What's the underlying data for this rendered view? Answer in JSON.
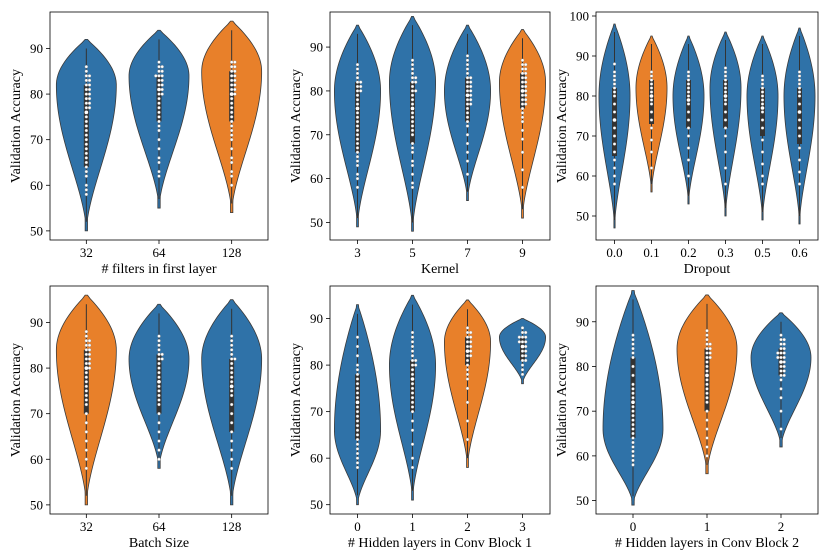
{
  "colors": {
    "blue": "#2f72a8",
    "orange": "#e8802a"
  },
  "chart_data": [
    {
      "type": "violin",
      "title": "",
      "xlabel": "# filters in first layer",
      "ylabel": "Validation Accuracy",
      "ylim": [
        48,
        98
      ],
      "yticks": [
        50,
        60,
        70,
        80,
        90
      ],
      "categories": [
        "32",
        "64",
        "128"
      ],
      "highlight": [
        "128"
      ],
      "series": [
        {
          "name": "32",
          "min": 50,
          "max": 92,
          "mode": 82,
          "q1": 64,
          "median": 76,
          "q3": 82,
          "points": [
            58,
            59,
            60,
            62,
            63,
            64,
            65,
            66,
            67,
            68,
            69,
            70,
            71,
            72,
            73,
            74,
            75,
            76,
            77,
            77,
            78,
            78,
            79,
            79,
            80,
            80,
            81,
            81,
            82,
            82,
            83,
            83,
            84,
            84,
            85,
            86
          ]
        },
        {
          "name": "64",
          "min": 55,
          "max": 94,
          "mode": 84,
          "q1": 74,
          "median": 81,
          "q3": 84,
          "points": [
            62,
            63,
            65,
            66,
            68,
            70,
            72,
            73,
            74,
            75,
            76,
            77,
            78,
            79,
            80,
            80,
            81,
            81,
            82,
            82,
            83,
            83,
            84,
            84,
            84,
            85,
            85,
            86,
            86,
            87
          ]
        },
        {
          "name": "128",
          "min": 54,
          "max": 96,
          "mode": 85,
          "q1": 74,
          "median": 80,
          "q3": 85,
          "points": [
            60,
            62,
            63,
            65,
            66,
            68,
            70,
            71,
            72,
            73,
            74,
            75,
            76,
            77,
            78,
            79,
            80,
            80,
            81,
            81,
            82,
            82,
            83,
            83,
            84,
            84,
            85,
            85,
            86,
            86,
            87,
            87
          ]
        }
      ]
    },
    {
      "type": "violin",
      "title": "",
      "xlabel": "Kernel",
      "ylabel": "Validation Accuracy",
      "ylim": [
        46,
        98
      ],
      "yticks": [
        50,
        60,
        70,
        80,
        90
      ],
      "categories": [
        "3",
        "5",
        "7",
        "9"
      ],
      "highlight": [
        "9"
      ],
      "series": [
        {
          "name": "3",
          "min": 49,
          "max": 95,
          "mode": 80,
          "q1": 66,
          "median": 76,
          "q3": 82,
          "points": [
            58,
            60,
            61,
            63,
            64,
            65,
            66,
            67,
            68,
            69,
            70,
            71,
            72,
            73,
            74,
            75,
            76,
            77,
            78,
            79,
            80,
            80,
            81,
            81,
            82,
            82,
            83,
            84,
            85,
            86
          ]
        },
        {
          "name": "5",
          "min": 48,
          "max": 97,
          "mode": 82,
          "q1": 68,
          "median": 76,
          "q3": 82,
          "points": [
            58,
            59,
            61,
            63,
            64,
            66,
            67,
            68,
            70,
            71,
            72,
            73,
            74,
            75,
            76,
            77,
            78,
            79,
            80,
            80,
            81,
            82,
            82,
            83,
            83,
            84,
            85,
            86,
            87
          ]
        },
        {
          "name": "7",
          "min": 55,
          "max": 95,
          "mode": 80,
          "q1": 73,
          "median": 79,
          "q3": 83,
          "points": [
            61,
            64,
            66,
            68,
            70,
            72,
            73,
            74,
            75,
            76,
            77,
            77,
            78,
            78,
            79,
            79,
            80,
            80,
            81,
            81,
            82,
            82,
            83,
            83,
            84,
            85,
            86,
            87,
            88
          ]
        },
        {
          "name": "9",
          "min": 51,
          "max": 94,
          "mode": 82,
          "q1": 76,
          "median": 80,
          "q3": 84,
          "points": [
            58,
            62,
            66,
            69,
            71,
            73,
            74,
            75,
            76,
            77,
            77,
            78,
            78,
            79,
            79,
            80,
            80,
            81,
            81,
            82,
            82,
            83,
            83,
            84,
            84,
            85,
            85,
            86,
            86,
            87
          ]
        }
      ]
    },
    {
      "type": "violin",
      "title": "",
      "xlabel": "Dropout",
      "ylabel": "Validation Accuracy",
      "ylim": [
        44,
        101
      ],
      "yticks": [
        50,
        60,
        70,
        80,
        90,
        100
      ],
      "categories": [
        "0.0",
        "0.1",
        "0.2",
        "0.3",
        "0.5",
        "0.6"
      ],
      "highlight": [
        "0.1"
      ],
      "series": [
        {
          "name": "0.0",
          "min": 47,
          "max": 98,
          "mode": 80,
          "q1": 65,
          "median": 74,
          "q3": 82,
          "points": [
            58,
            60,
            62,
            64,
            66,
            68,
            70,
            72,
            74,
            76,
            78,
            80,
            81,
            82,
            83,
            84,
            85,
            86,
            88
          ]
        },
        {
          "name": "0.1",
          "min": 56,
          "max": 95,
          "mode": 82,
          "q1": 73,
          "median": 80,
          "q3": 84,
          "points": [
            62,
            66,
            69,
            72,
            74,
            76,
            78,
            79,
            80,
            81,
            82,
            83,
            84,
            85,
            86
          ]
        },
        {
          "name": "0.2",
          "min": 53,
          "max": 95,
          "mode": 80,
          "q1": 72,
          "median": 79,
          "q3": 84,
          "points": [
            60,
            64,
            67,
            70,
            72,
            74,
            76,
            78,
            79,
            80,
            81,
            82,
            83,
            84,
            85,
            86
          ]
        },
        {
          "name": "0.3",
          "min": 50,
          "max": 96,
          "mode": 82,
          "q1": 72,
          "median": 80,
          "q3": 84,
          "points": [
            58,
            62,
            66,
            70,
            72,
            74,
            76,
            78,
            79,
            80,
            81,
            82,
            83,
            84,
            85,
            86,
            87
          ]
        },
        {
          "name": "0.5",
          "min": 49,
          "max": 95,
          "mode": 80,
          "q1": 70,
          "median": 77,
          "q3": 82,
          "points": [
            58,
            60,
            63,
            66,
            69,
            72,
            74,
            76,
            78,
            79,
            80,
            81,
            82,
            83,
            84,
            85
          ]
        },
        {
          "name": "0.6",
          "min": 48,
          "max": 97,
          "mode": 80,
          "q1": 68,
          "median": 76,
          "q3": 82,
          "points": [
            58,
            61,
            64,
            67,
            70,
            72,
            74,
            76,
            78,
            80,
            81,
            82,
            83,
            84,
            85,
            86
          ]
        }
      ]
    },
    {
      "type": "violin",
      "title": "",
      "xlabel": "Batch Size",
      "ylabel": "Validation Accuracy",
      "ylim": [
        48,
        98
      ],
      "yticks": [
        50,
        60,
        70,
        80,
        90
      ],
      "categories": [
        "32",
        "64",
        "128"
      ],
      "highlight": [
        "32"
      ],
      "series": [
        {
          "name": "32",
          "min": 50,
          "max": 96,
          "mode": 84,
          "q1": 70,
          "median": 80,
          "q3": 84,
          "points": [
            58,
            60,
            62,
            64,
            66,
            68,
            70,
            72,
            73,
            74,
            75,
            76,
            77,
            78,
            79,
            80,
            80,
            81,
            81,
            82,
            82,
            83,
            83,
            84,
            84,
            85,
            85,
            86,
            86,
            87,
            88
          ]
        },
        {
          "name": "64",
          "min": 58,
          "max": 94,
          "mode": 82,
          "q1": 70,
          "median": 77,
          "q3": 83,
          "points": [
            60,
            62,
            64,
            66,
            68,
            70,
            72,
            73,
            74,
            75,
            76,
            77,
            78,
            79,
            80,
            81,
            82,
            82,
            83,
            83,
            84,
            85,
            86,
            87
          ]
        },
        {
          "name": "128",
          "min": 50,
          "max": 95,
          "mode": 82,
          "q1": 66,
          "median": 76,
          "q3": 82,
          "points": [
            58,
            60,
            62,
            64,
            66,
            68,
            70,
            72,
            74,
            75,
            76,
            77,
            78,
            79,
            80,
            81,
            82,
            82,
            83,
            84,
            85,
            86,
            87
          ]
        }
      ]
    },
    {
      "type": "violin",
      "title": "",
      "xlabel": "# Hidden layers in Conv Block 1",
      "ylabel": "Validation Accuracy",
      "ylim": [
        48,
        97
      ],
      "yticks": [
        50,
        60,
        70,
        80,
        90
      ],
      "categories": [
        "0",
        "1",
        "2",
        "3"
      ],
      "highlight": [
        "2"
      ],
      "series": [
        {
          "name": "0",
          "min": 50,
          "max": 93,
          "mode": 66,
          "q1": 64,
          "median": 72,
          "q3": 78,
          "points": [
            58,
            59,
            60,
            61,
            62,
            63,
            64,
            65,
            66,
            67,
            68,
            69,
            70,
            71,
            72,
            73,
            74,
            75,
            76,
            77,
            78,
            79,
            80,
            82,
            84,
            86
          ]
        },
        {
          "name": "1",
          "min": 51,
          "max": 95,
          "mode": 80,
          "q1": 70,
          "median": 77,
          "q3": 81,
          "points": [
            58,
            60,
            63,
            66,
            68,
            70,
            71,
            72,
            73,
            74,
            75,
            76,
            77,
            78,
            79,
            80,
            80,
            81,
            81,
            82,
            83,
            84,
            85,
            86,
            87
          ]
        },
        {
          "name": "2",
          "min": 58,
          "max": 94,
          "mode": 85,
          "q1": 80,
          "median": 83,
          "q3": 86,
          "points": [
            64,
            68,
            72,
            75,
            77,
            78,
            79,
            80,
            81,
            82,
            82,
            83,
            83,
            84,
            84,
            85,
            85,
            86,
            86,
            87,
            87,
            88
          ]
        },
        {
          "name": "3",
          "min": 76,
          "max": 90,
          "mode": 86,
          "q1": 81,
          "median": 84,
          "q3": 86,
          "points": [
            78,
            79,
            80,
            81,
            81,
            82,
            82,
            83,
            83,
            84,
            84,
            85,
            85,
            85,
            86,
            86,
            86,
            87,
            87,
            88
          ]
        }
      ]
    },
    {
      "type": "violin",
      "title": "",
      "xlabel": "# Hidden layers in Conv Block 2",
      "ylabel": "Validation Accuracy",
      "ylim": [
        47,
        98
      ],
      "yticks": [
        50,
        60,
        70,
        80,
        90
      ],
      "categories": [
        "0",
        "1",
        "2"
      ],
      "highlight": [
        "1"
      ],
      "series": [
        {
          "name": "0",
          "min": 49,
          "max": 97,
          "mode": 66,
          "q1": 64,
          "median": 72,
          "q3": 82,
          "points": [
            58,
            59,
            60,
            61,
            62,
            63,
            64,
            65,
            66,
            67,
            68,
            69,
            70,
            71,
            72,
            73,
            74,
            75,
            76,
            78,
            80,
            82,
            83,
            84,
            85,
            86,
            87
          ]
        },
        {
          "name": "1",
          "min": 56,
          "max": 96,
          "mode": 84,
          "q1": 70,
          "median": 78,
          "q3": 84,
          "points": [
            60,
            62,
            64,
            66,
            68,
            70,
            72,
            73,
            74,
            75,
            76,
            77,
            78,
            79,
            80,
            81,
            82,
            82,
            83,
            83,
            84,
            84,
            85,
            85,
            86,
            87,
            88
          ]
        },
        {
          "name": "2",
          "min": 62,
          "max": 92,
          "mode": 82,
          "q1": 78,
          "median": 81,
          "q3": 84,
          "points": [
            66,
            70,
            73,
            75,
            77,
            78,
            78,
            79,
            79,
            80,
            80,
            81,
            81,
            82,
            82,
            82,
            83,
            83,
            83,
            84,
            84,
            85,
            85,
            86,
            86,
            87
          ]
        }
      ]
    }
  ]
}
